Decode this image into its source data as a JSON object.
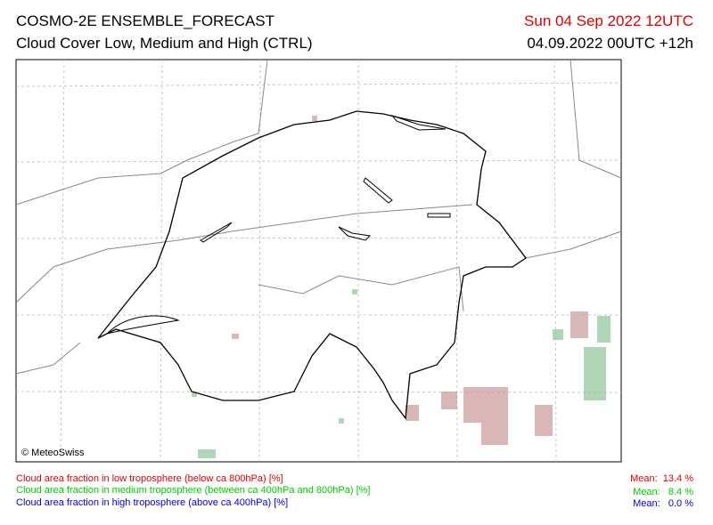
{
  "header": {
    "title": "COSMO-2E ENSEMBLE_FORECAST",
    "subtitle": "Cloud Cover Low, Medium and High (CTRL)",
    "valid_time": "Sun 04 Sep 2022 12UTC",
    "run_time": "04.09.2022 00UTC +12h"
  },
  "map": {
    "copyright": "© MeteoSwiss"
  },
  "legend": [
    {
      "label": "Cloud area fraction in low troposphere (below ca 800hPa) [%]",
      "mean": "Mean:  13.4 %"
    },
    {
      "label": "Cloud area fraction in medium troposphere (between ca 400hPa and 800hPa) [%]",
      "mean": "Mean:   8.4 %"
    },
    {
      "label": "Cloud area fraction in high troposphere (above ca 400hPa) [%]",
      "mean": "Mean:   0.0 %"
    }
  ]
}
